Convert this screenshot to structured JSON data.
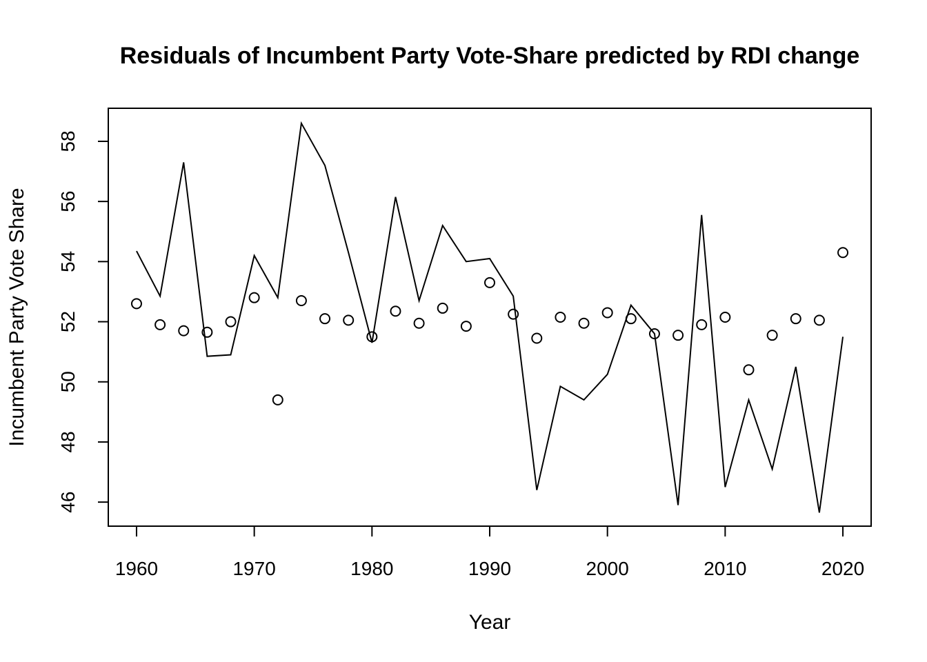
{
  "chart_data": {
    "type": "line",
    "title": "Residuals of Incumbent Party Vote-Share predicted by RDI change",
    "xlabel": "Year",
    "ylabel": "Incumbent Party Vote Share",
    "xlim": [
      1957.6,
      2022.4
    ],
    "ylim": [
      45.2,
      59.1
    ],
    "x_ticks": [
      1960,
      1970,
      1980,
      1990,
      2000,
      2010,
      2020
    ],
    "y_ticks": [
      46,
      48,
      50,
      52,
      54,
      56,
      58
    ],
    "x_tick_labels": [
      "1960",
      "1970",
      "1980",
      "1990",
      "2000",
      "2010",
      "2020"
    ],
    "y_tick_labels": [
      "46",
      "48",
      "50",
      "52",
      "54",
      "56",
      "58"
    ],
    "grid": false,
    "series": [
      {
        "style": "line",
        "color": "#000000",
        "x": [
          1960,
          1962,
          1964,
          1966,
          1968,
          1970,
          1972,
          1974,
          1976,
          1978,
          1980,
          1982,
          1984,
          1986,
          1988,
          1990,
          1992,
          1994,
          1996,
          1998,
          2000,
          2002,
          2004,
          2006,
          2008,
          2010,
          2012,
          2014,
          2016,
          2018,
          2020
        ],
        "y": [
          54.35,
          52.85,
          57.3,
          50.85,
          50.9,
          54.2,
          52.8,
          58.6,
          57.2,
          54.3,
          51.3,
          56.15,
          52.7,
          55.2,
          54.0,
          54.1,
          52.85,
          46.4,
          49.85,
          49.4,
          50.25,
          52.55,
          51.6,
          45.9,
          55.55,
          46.5,
          49.4,
          47.1,
          50.5,
          45.65,
          51.5
        ]
      },
      {
        "style": "points",
        "marker": "open-circle",
        "color": "#000000",
        "x": [
          1960,
          1962,
          1964,
          1966,
          1968,
          1970,
          1972,
          1974,
          1976,
          1978,
          1980,
          1982,
          1984,
          1986,
          1988,
          1990,
          1992,
          1994,
          1996,
          1998,
          2000,
          2002,
          2004,
          2006,
          2008,
          2010,
          2012,
          2014,
          2016,
          2018,
          2020
        ],
        "y": [
          52.6,
          51.9,
          51.7,
          51.65,
          52.0,
          52.8,
          49.4,
          52.7,
          52.1,
          52.05,
          51.5,
          52.35,
          51.95,
          52.45,
          51.85,
          53.3,
          52.25,
          51.45,
          52.15,
          51.95,
          52.3,
          52.1,
          51.6,
          51.55,
          51.9,
          52.15,
          50.4,
          51.55,
          52.1,
          52.05,
          54.3
        ]
      }
    ]
  }
}
